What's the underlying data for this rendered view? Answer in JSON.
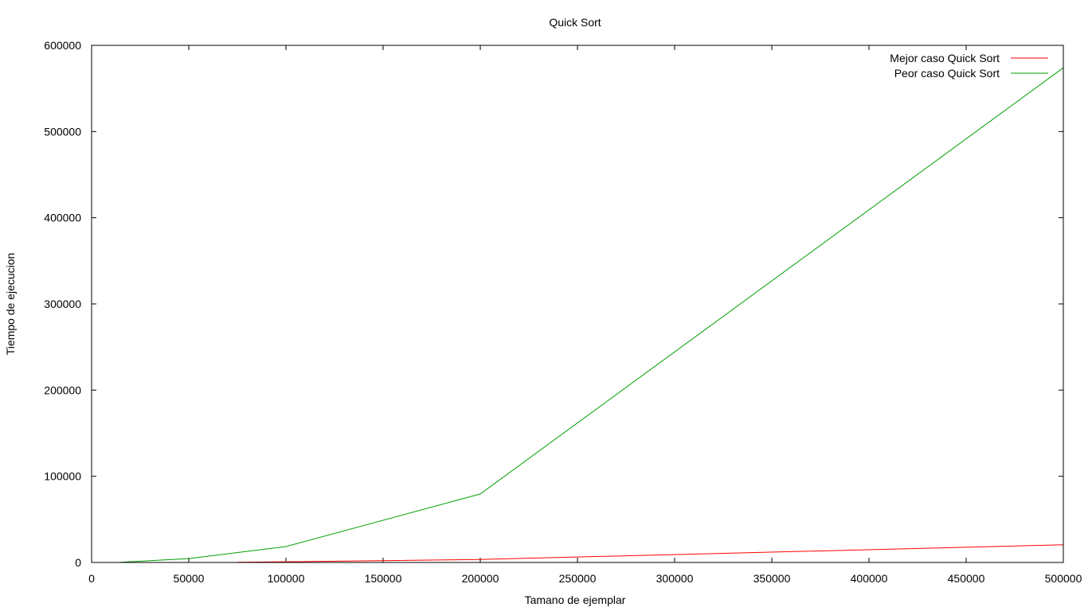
{
  "chart_data": {
    "type": "line",
    "title": "Quick Sort",
    "xlabel": "Tamano de ejemplar",
    "ylabel": "Tiempo de ejecucion",
    "xlim": [
      0,
      500000
    ],
    "ylim": [
      0,
      600000
    ],
    "xticks": [
      0,
      50000,
      100000,
      150000,
      200000,
      250000,
      300000,
      350000,
      400000,
      450000,
      500000
    ],
    "yticks": [
      0,
      100000,
      200000,
      300000,
      400000,
      500000,
      600000
    ],
    "grid": false,
    "legend_position": "top-right",
    "series": [
      {
        "name": "Mejor caso Quick Sort",
        "color": "#ff0000",
        "x": [
          75000,
          100000,
          200000,
          500000
        ],
        "y": [
          200,
          800,
          3500,
          20500
        ]
      },
      {
        "name": "Peor caso Quick Sort",
        "color": "#00a000",
        "x": [
          15000,
          50000,
          100000,
          200000,
          500000
        ],
        "y": [
          300,
          4500,
          18500,
          79500,
          574000
        ]
      }
    ]
  }
}
